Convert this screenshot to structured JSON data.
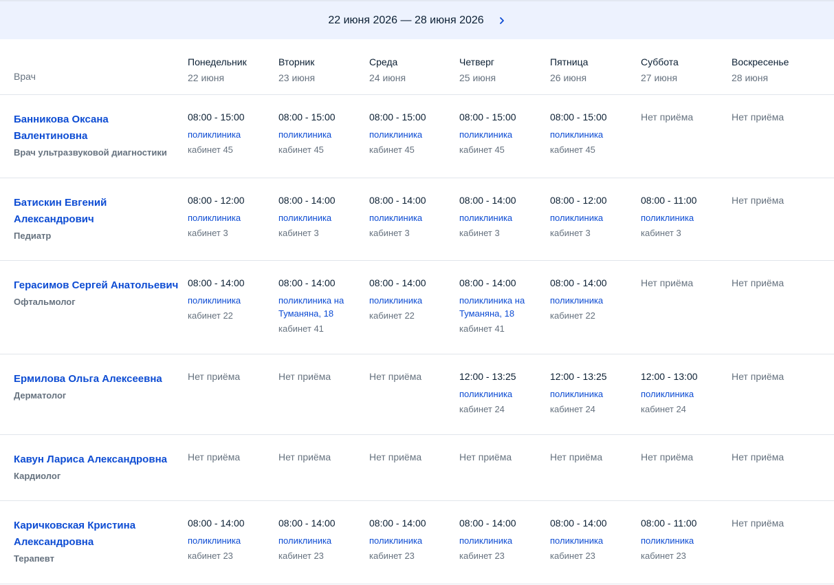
{
  "header": {
    "period": "22 июня 2026 — 28 июня 2026"
  },
  "table": {
    "doctor_label": "Врач",
    "days": [
      {
        "name": "Понедельник",
        "date": "22 июня"
      },
      {
        "name": "Вторник",
        "date": "23 июня"
      },
      {
        "name": "Среда",
        "date": "24 июня"
      },
      {
        "name": "Четверг",
        "date": "25 июня"
      },
      {
        "name": "Пятница",
        "date": "26 июня"
      },
      {
        "name": "Суббота",
        "date": "27 июня"
      },
      {
        "name": "Воскресенье",
        "date": "28 июня"
      }
    ],
    "rows": [
      {
        "name": "Банникова Оксана Валентиновна",
        "specialty": "Врач ультразвуковой диагностики",
        "days": [
          {
            "time": "08:00 - 15:00",
            "place": "поликлиника",
            "room": "кабинет 45"
          },
          {
            "time": "08:00 - 15:00",
            "place": "поликлиника",
            "room": "кабинет 45"
          },
          {
            "time": "08:00 - 15:00",
            "place": "поликлиника",
            "room": "кабинет 45"
          },
          {
            "time": "08:00 - 15:00",
            "place": "поликлиника",
            "room": "кабинет 45"
          },
          {
            "time": "08:00 - 15:00",
            "place": "поликлиника",
            "room": "кабинет 45"
          },
          {
            "status": "Нет приёма"
          },
          {
            "status": "Нет приёма"
          }
        ]
      },
      {
        "name": "Батискин Евгений Александрович",
        "specialty": "Педиатр",
        "days": [
          {
            "time": "08:00 - 12:00",
            "place": "поликлиника",
            "room": "кабинет 3"
          },
          {
            "time": "08:00 - 14:00",
            "place": "поликлиника",
            "room": "кабинет 3"
          },
          {
            "time": "08:00 - 14:00",
            "place": "поликлиника",
            "room": "кабинет 3"
          },
          {
            "time": "08:00 - 14:00",
            "place": "поликлиника",
            "room": "кабинет 3"
          },
          {
            "time": "08:00 - 12:00",
            "place": "поликлиника",
            "room": "кабинет 3"
          },
          {
            "time": "08:00 - 11:00",
            "place": "поликлиника",
            "room": "кабинет 3"
          },
          {
            "status": "Нет приёма"
          }
        ]
      },
      {
        "name": "Герасимов Сергей Анатольевич",
        "specialty": "Офтальмолог",
        "days": [
          {
            "time": "08:00 - 14:00",
            "place": "поликлиника",
            "room": "кабинет 22"
          },
          {
            "time": "08:00 - 14:00",
            "place": "поликлиника на Туманяна, 18",
            "room": "кабинет 41"
          },
          {
            "time": "08:00 - 14:00",
            "place": "поликлиника",
            "room": "кабинет 22"
          },
          {
            "time": "08:00 - 14:00",
            "place": "поликлиника на Туманяна, 18",
            "room": "кабинет 41"
          },
          {
            "time": "08:00 - 14:00",
            "place": "поликлиника",
            "room": "кабинет 22"
          },
          {
            "status": "Нет приёма"
          },
          {
            "status": "Нет приёма"
          }
        ]
      },
      {
        "name": "Ермилова Ольга Алексеевна",
        "specialty": "Дерматолог",
        "days": [
          {
            "status": "Нет приёма"
          },
          {
            "status": "Нет приёма"
          },
          {
            "status": "Нет приёма"
          },
          {
            "time": "12:00 - 13:25",
            "place": "поликлиника",
            "room": "кабинет 24"
          },
          {
            "time": "12:00 - 13:25",
            "place": "поликлиника",
            "room": "кабинет 24"
          },
          {
            "time": "12:00 - 13:00",
            "place": "поликлиника",
            "room": "кабинет 24"
          },
          {
            "status": "Нет приёма"
          }
        ]
      },
      {
        "name": "Кавун Лариса Александровна",
        "specialty": "Кардиолог",
        "days": [
          {
            "status": "Нет приёма"
          },
          {
            "status": "Нет приёма"
          },
          {
            "status": "Нет приёма"
          },
          {
            "status": "Нет приёма"
          },
          {
            "status": "Нет приёма"
          },
          {
            "status": "Нет приёма"
          },
          {
            "status": "Нет приёма"
          }
        ]
      },
      {
        "name": "Каричковская Кристина Александровна",
        "specialty": "Терапевт",
        "days": [
          {
            "time": "08:00 - 14:00",
            "place": "поликлиника",
            "room": "кабинет 23"
          },
          {
            "time": "08:00 - 14:00",
            "place": "поликлиника",
            "room": "кабинет 23"
          },
          {
            "time": "08:00 - 14:00",
            "place": "поликлиника",
            "room": "кабинет 23"
          },
          {
            "time": "08:00 - 14:00",
            "place": "поликлиника",
            "room": "кабинет 23"
          },
          {
            "time": "08:00 - 14:00",
            "place": "поликлиника",
            "room": "кабинет 23"
          },
          {
            "time": "08:00 - 11:00",
            "place": "поликлиника",
            "room": "кабинет 23"
          },
          {
            "status": "Нет приёма"
          }
        ]
      }
    ]
  }
}
